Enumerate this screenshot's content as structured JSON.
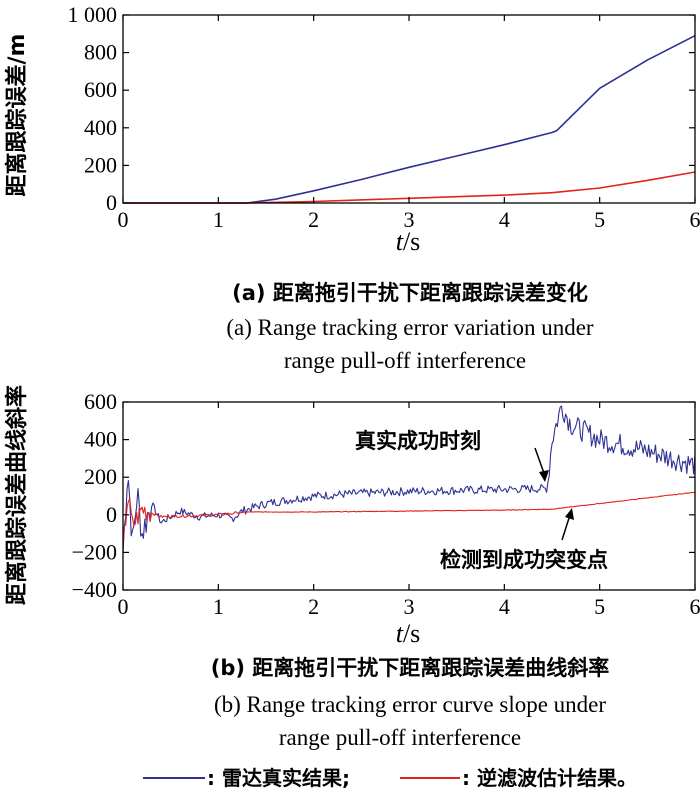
{
  "chart_data": [
    {
      "type": "line",
      "ylabel": "距离跟踪误差/m",
      "xlabel_var": "t",
      "xlabel_unit": "/s",
      "xlim": [
        0,
        6
      ],
      "ylim": [
        0,
        1000
      ],
      "x_ticks": [
        "0",
        "1",
        "2",
        "3",
        "4",
        "5",
        "6"
      ],
      "y_ticks": [
        "0",
        "200",
        "400",
        "600",
        "800",
        "1 000"
      ],
      "caption_cn": "(a) 距离拖引干扰下距离跟踪误差变化",
      "caption_en_1": "(a) Range tracking error variation under",
      "caption_en_2": "range pull-off interference",
      "series": [
        {
          "key": "radar",
          "color": "#2e3192",
          "points": [
            [
              0,
              0
            ],
            [
              1.0,
              0
            ],
            [
              1.3,
              0
            ],
            [
              1.6,
              20
            ],
            [
              2.0,
              65
            ],
            [
              2.5,
              125
            ],
            [
              3.0,
              190
            ],
            [
              3.5,
              250
            ],
            [
              4.0,
              310
            ],
            [
              4.5,
              375
            ],
            [
              4.55,
              385
            ],
            [
              5.0,
              610
            ],
            [
              5.5,
              760
            ],
            [
              6.0,
              890
            ]
          ]
        },
        {
          "key": "filter",
          "color": "#e2231a",
          "points": [
            [
              0,
              0
            ],
            [
              1.3,
              0
            ],
            [
              2.0,
              8
            ],
            [
              3.0,
              25
            ],
            [
              4.0,
              42
            ],
            [
              4.5,
              55
            ],
            [
              5.0,
              80
            ],
            [
              5.5,
              120
            ],
            [
              6.0,
              165
            ]
          ]
        }
      ]
    },
    {
      "type": "line",
      "ylabel": "距离跟踪误差曲线斜率",
      "xlabel_var": "t",
      "xlabel_unit": "/s",
      "xlim": [
        0,
        6
      ],
      "ylim": [
        -400,
        600
      ],
      "x_ticks": [
        "0",
        "1",
        "2",
        "3",
        "4",
        "5",
        "6"
      ],
      "y_ticks": [
        "−400",
        "−200",
        "0",
        "200",
        "400",
        "600"
      ],
      "caption_cn": "(b) 距离拖引干扰下距离跟踪误差曲线斜率",
      "caption_en_1": "(b) Range tracking error curve slope under",
      "caption_en_2": "range pull-off interference",
      "annotations": {
        "true_moment": "真实成功时刻",
        "detected_point": "检测到成功突变点"
      },
      "series": [
        {
          "key": "radar",
          "color": "#2e3192",
          "points": [
            [
              0,
              -200
            ],
            [
              0.05,
              250
            ],
            [
              0.1,
              -150
            ],
            [
              0.15,
              120
            ],
            [
              0.2,
              -100
            ],
            [
              0.3,
              60
            ],
            [
              0.4,
              -40
            ],
            [
              0.6,
              20
            ],
            [
              0.8,
              -10
            ],
            [
              1.0,
              0
            ],
            [
              1.15,
              -20
            ],
            [
              1.25,
              20
            ],
            [
              1.5,
              60
            ],
            [
              2.0,
              100
            ],
            [
              2.5,
              115
            ],
            [
              3.0,
              125
            ],
            [
              3.5,
              130
            ],
            [
              4.0,
              135
            ],
            [
              4.45,
              140
            ],
            [
              4.5,
              400
            ],
            [
              4.6,
              580
            ],
            [
              4.7,
              480
            ],
            [
              5.0,
              400
            ],
            [
              5.5,
              340
            ],
            [
              6.0,
              265
            ]
          ]
        },
        {
          "key": "filter",
          "color": "#e2231a",
          "points": [
            [
              0,
              -200
            ],
            [
              0.05,
              110
            ],
            [
              0.1,
              -60
            ],
            [
              0.2,
              30
            ],
            [
              0.4,
              -10
            ],
            [
              1.0,
              0
            ],
            [
              1.3,
              15
            ],
            [
              2.0,
              15
            ],
            [
              3.0,
              20
            ],
            [
              4.0,
              25
            ],
            [
              4.5,
              30
            ],
            [
              5.0,
              60
            ],
            [
              5.5,
              90
            ],
            [
              6.0,
              120
            ]
          ]
        }
      ]
    }
  ],
  "legend": {
    "radar_label": ": 雷达真实结果;",
    "filter_label": ": 逆滤波估计结果。"
  },
  "colors": {
    "radar": "#2e3192",
    "filter": "#e2231a"
  }
}
